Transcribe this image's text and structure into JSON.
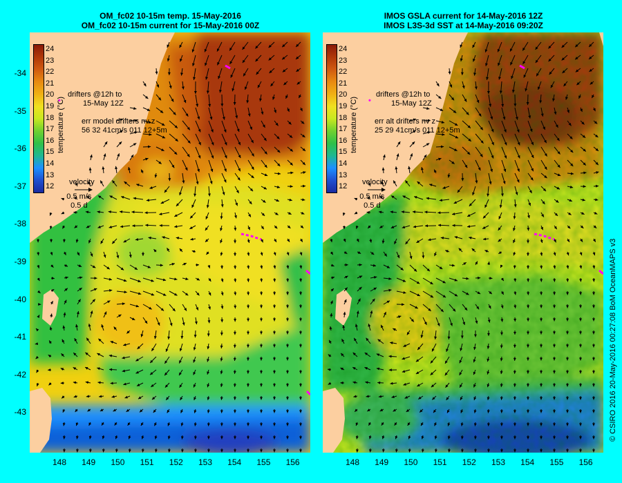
{
  "left_panel": {
    "title_line1": "OM_fc02 10-15m temp. 15-May-2016",
    "title_line2": "OM_fc02 10-15m current for 15-May-2016 00Z",
    "drifters_line1": "drifters @12h to",
    "drifters_line2": "15-May 12Z",
    "err_line1": "err model drifters nv z",
    "err_line2": "56 32 41cm/s 011 12+5m"
  },
  "right_panel": {
    "title_line1": "IMOS GSLA current for 14-May-2016 12Z",
    "title_line2": "IMOS L3S-3d SST at 14-May-2016 09:20Z",
    "drifters_line1": "drifters @12h to",
    "drifters_line2": "15-May 12Z",
    "err_line1": "err alt drifters nv z",
    "err_line2": "25 29 41cm/s 011 12+5m"
  },
  "colorbar": {
    "title": "temperature (°C)",
    "labels": [
      "24",
      "23",
      "22",
      "21",
      "20",
      "19",
      "18",
      "17",
      "16",
      "15",
      "14",
      "13",
      "12"
    ]
  },
  "velocity_legend": {
    "title": "velocity",
    "speed": "0.5 m/s",
    "time": "0.5 d"
  },
  "axes": {
    "lat_labels": [
      "-34",
      "-35",
      "-36",
      "-37",
      "-38",
      "-39",
      "-40",
      "-41",
      "-42",
      "-43"
    ],
    "lon_labels": [
      "148",
      "149",
      "150",
      "151",
      "152",
      "153",
      "154",
      "155",
      "156"
    ]
  },
  "credit": "© CSIRO 2016   20-May-2016 00:27:08 BoM OceanMAPS v3",
  "colors": {
    "background": "#00ffff",
    "land": "#fccfa0",
    "drifter": "#ff00ff"
  }
}
